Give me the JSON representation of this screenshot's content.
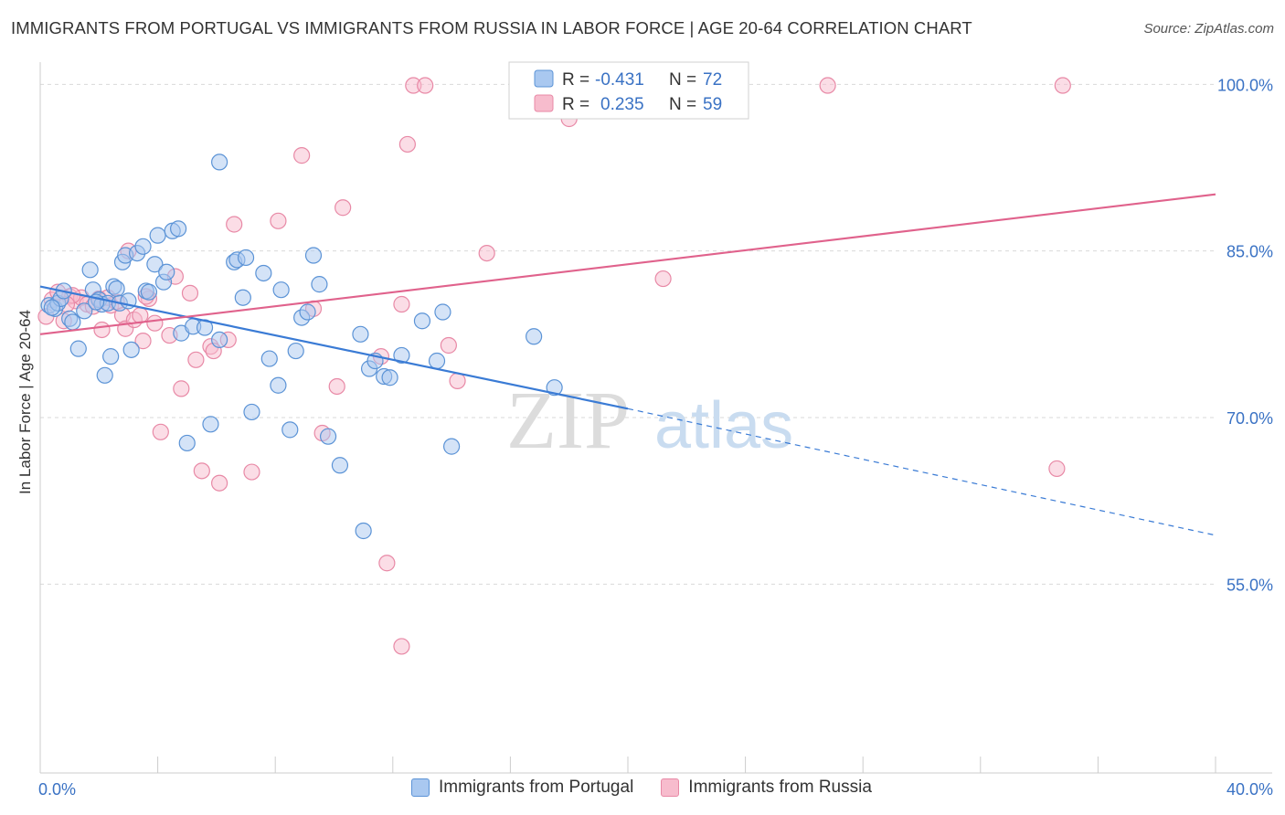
{
  "title": "IMMIGRANTS FROM PORTUGAL VS IMMIGRANTS FROM RUSSIA IN LABOR FORCE | AGE 20-64 CORRELATION CHART",
  "source": "Source: ZipAtlas.com",
  "watermark": {
    "zip": "ZIP",
    "atlas": "atlas"
  },
  "legend_top": [
    {
      "r_label": "R =",
      "r_value": "-0.431",
      "n_label": "N =",
      "n_value": "72"
    },
    {
      "r_label": "R =",
      "r_value": "0.235",
      "n_label": "N =",
      "n_value": "59"
    }
  ],
  "colors": {
    "portugal_fill": "#a9c8f0",
    "portugal_stroke": "#5b93d6",
    "portugal_line": "#3a7bd5",
    "russia_fill": "#f7bccd",
    "russia_stroke": "#e889a6",
    "russia_line": "#e0628c",
    "axis_text": "#3a72c4",
    "grid": "#d9d9d9"
  },
  "chart_data": {
    "type": "scatter",
    "title": "IMMIGRANTS FROM PORTUGAL VS IMMIGRANTS FROM RUSSIA IN LABOR FORCE | AGE 20-64 CORRELATION CHART",
    "xlabel": "",
    "ylabel": "In Labor Force | Age 20-64",
    "xlim": [
      0,
      40
    ],
    "ylim": [
      38,
      102
    ],
    "x_tick_labels": [
      "0.0%",
      "40.0%"
    ],
    "y_ticks": [
      55,
      70,
      85,
      100
    ],
    "y_tick_labels": [
      "55.0%",
      "70.0%",
      "85.0%",
      "100.0%"
    ],
    "grid": true,
    "legend_position": "top-center",
    "series": [
      {
        "name": "Immigrants from Portugal",
        "r": -0.431,
        "n": 72,
        "trend": {
          "x_solid": [
            0,
            20
          ],
          "y_solid": [
            81.8,
            70.8
          ],
          "x_dashed": [
            20,
            40
          ],
          "y_dashed": [
            70.8,
            59.4
          ]
        },
        "points": [
          [
            0.3,
            80.1
          ],
          [
            0.5,
            79.8
          ],
          [
            0.6,
            80.3
          ],
          [
            0.7,
            80.7
          ],
          [
            0.8,
            81.4
          ],
          [
            1.0,
            78.9
          ],
          [
            1.1,
            78.6
          ],
          [
            1.3,
            76.2
          ],
          [
            1.5,
            79.6
          ],
          [
            1.7,
            83.3
          ],
          [
            1.8,
            81.5
          ],
          [
            2.0,
            80.6
          ],
          [
            2.1,
            80.2
          ],
          [
            2.2,
            73.8
          ],
          [
            2.3,
            80.3
          ],
          [
            2.4,
            75.5
          ],
          [
            2.5,
            81.8
          ],
          [
            2.6,
            81.6
          ],
          [
            2.8,
            84.0
          ],
          [
            2.9,
            84.6
          ],
          [
            3.1,
            76.1
          ],
          [
            3.3,
            84.8
          ],
          [
            3.5,
            85.4
          ],
          [
            3.6,
            81.4
          ],
          [
            3.7,
            81.3
          ],
          [
            3.9,
            83.8
          ],
          [
            4.0,
            86.4
          ],
          [
            4.2,
            82.2
          ],
          [
            4.3,
            83.1
          ],
          [
            4.5,
            86.8
          ],
          [
            4.7,
            87.0
          ],
          [
            4.8,
            77.6
          ],
          [
            5.0,
            67.7
          ],
          [
            5.2,
            78.2
          ],
          [
            5.6,
            78.1
          ],
          [
            5.8,
            69.4
          ],
          [
            6.1,
            77.0
          ],
          [
            6.1,
            93.0
          ],
          [
            6.6,
            84.0
          ],
          [
            6.7,
            84.2
          ],
          [
            6.9,
            80.8
          ],
          [
            7.0,
            84.4
          ],
          [
            7.2,
            70.5
          ],
          [
            7.6,
            83.0
          ],
          [
            7.8,
            75.3
          ],
          [
            8.1,
            72.9
          ],
          [
            8.2,
            81.5
          ],
          [
            8.5,
            68.9
          ],
          [
            8.7,
            76.0
          ],
          [
            8.9,
            79.0
          ],
          [
            9.1,
            79.5
          ],
          [
            9.3,
            84.6
          ],
          [
            9.5,
            82.0
          ],
          [
            9.8,
            68.3
          ],
          [
            10.2,
            65.7
          ],
          [
            10.9,
            77.5
          ],
          [
            11.0,
            59.8
          ],
          [
            11.2,
            74.4
          ],
          [
            11.4,
            75.1
          ],
          [
            11.7,
            73.7
          ],
          [
            11.9,
            73.6
          ],
          [
            12.3,
            75.6
          ],
          [
            13.0,
            78.7
          ],
          [
            13.5,
            75.1
          ],
          [
            13.7,
            79.5
          ],
          [
            14.0,
            67.4
          ],
          [
            17.5,
            72.7
          ],
          [
            16.8,
            77.3
          ],
          [
            1.9,
            80.4
          ],
          [
            2.7,
            80.3
          ],
          [
            0.4,
            79.9
          ],
          [
            3.0,
            80.5
          ]
        ]
      },
      {
        "name": "Immigrants from Russia",
        "r": 0.235,
        "n": 59,
        "trend": {
          "x_solid": [
            0,
            40
          ],
          "y_solid": [
            77.5,
            90.1
          ]
        },
        "points": [
          [
            0.2,
            79.1
          ],
          [
            0.4,
            80.6
          ],
          [
            0.6,
            81.3
          ],
          [
            0.8,
            78.7
          ],
          [
            1.0,
            80.9
          ],
          [
            1.2,
            80.5
          ],
          [
            1.4,
            80.8
          ],
          [
            1.6,
            80.2
          ],
          [
            1.8,
            80.0
          ],
          [
            2.0,
            80.7
          ],
          [
            2.1,
            77.9
          ],
          [
            2.4,
            80.1
          ],
          [
            2.6,
            80.4
          ],
          [
            2.8,
            79.2
          ],
          [
            2.9,
            78.0
          ],
          [
            3.0,
            85.0
          ],
          [
            3.2,
            78.8
          ],
          [
            3.4,
            79.2
          ],
          [
            3.5,
            76.9
          ],
          [
            3.7,
            80.7
          ],
          [
            3.9,
            78.5
          ],
          [
            4.1,
            68.7
          ],
          [
            4.4,
            77.4
          ],
          [
            4.6,
            82.7
          ],
          [
            4.8,
            72.6
          ],
          [
            5.1,
            81.2
          ],
          [
            5.3,
            75.2
          ],
          [
            5.5,
            65.2
          ],
          [
            5.8,
            76.4
          ],
          [
            5.9,
            76.0
          ],
          [
            6.1,
            64.1
          ],
          [
            6.4,
            77.0
          ],
          [
            6.6,
            87.4
          ],
          [
            7.2,
            65.1
          ],
          [
            8.1,
            87.7
          ],
          [
            8.9,
            93.6
          ],
          [
            9.3,
            79.8
          ],
          [
            9.6,
            68.6
          ],
          [
            10.1,
            72.8
          ],
          [
            10.3,
            88.9
          ],
          [
            11.6,
            75.5
          ],
          [
            11.8,
            56.9
          ],
          [
            12.3,
            49.4
          ],
          [
            12.3,
            80.2
          ],
          [
            12.5,
            94.6
          ],
          [
            12.7,
            99.9
          ],
          [
            13.1,
            99.9
          ],
          [
            13.9,
            76.5
          ],
          [
            14.2,
            73.3
          ],
          [
            15.2,
            84.8
          ],
          [
            18.0,
            96.9
          ],
          [
            21.2,
            82.5
          ],
          [
            26.8,
            99.9
          ],
          [
            34.8,
            99.9
          ],
          [
            34.6,
            65.4
          ],
          [
            1.1,
            81.0
          ],
          [
            2.3,
            80.8
          ],
          [
            0.9,
            80.2
          ],
          [
            3.6,
            80.9
          ]
        ]
      }
    ]
  }
}
